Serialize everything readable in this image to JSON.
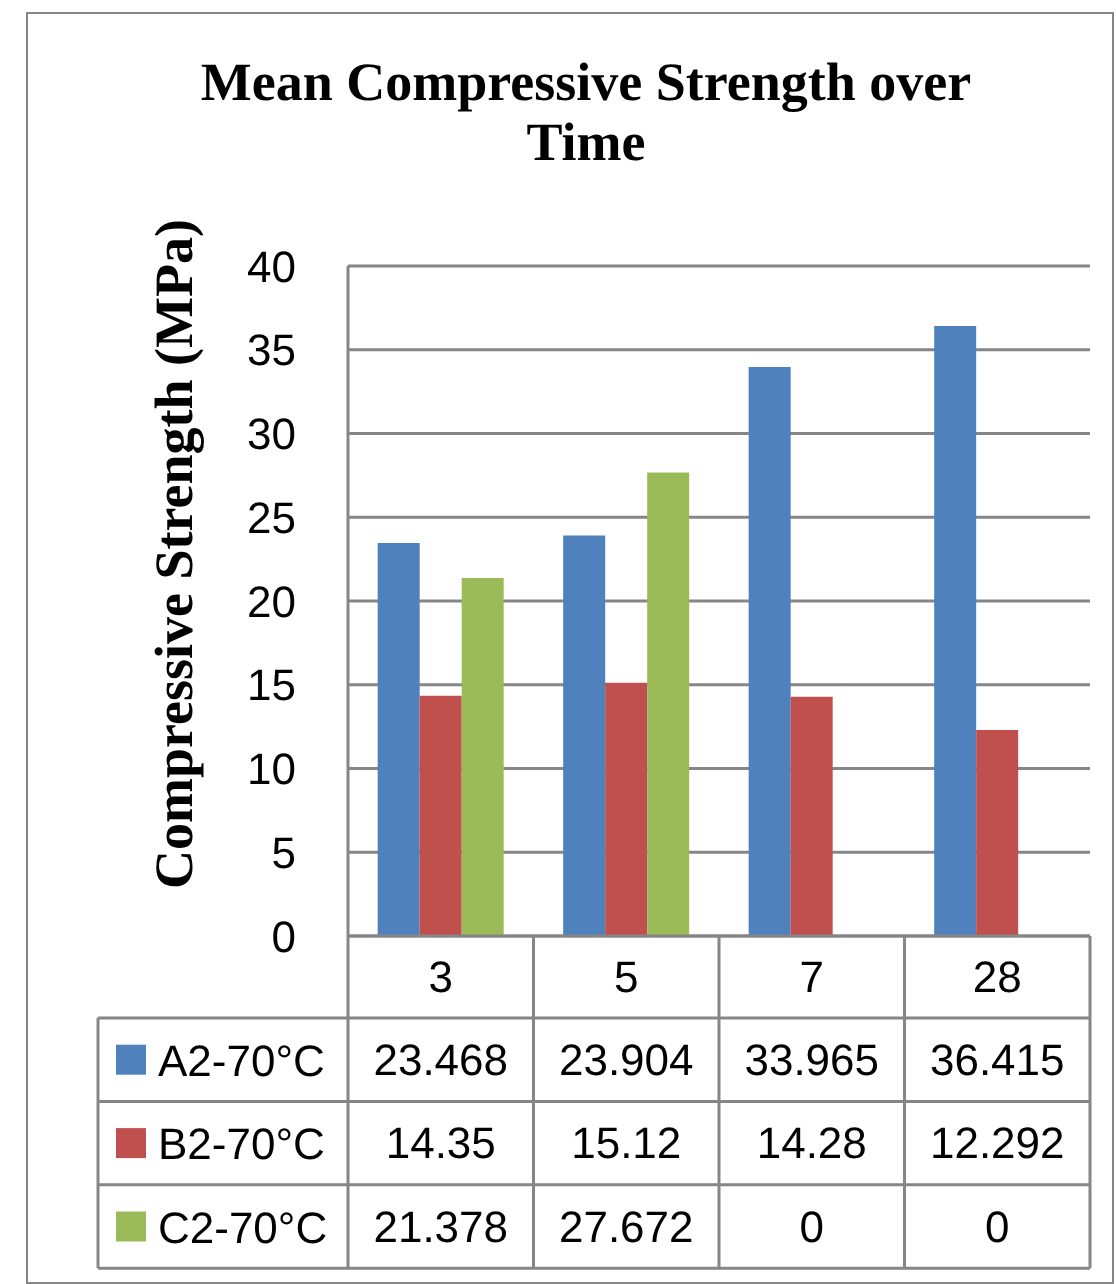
{
  "chart_data": {
    "type": "bar",
    "title": "Mean Compressive Strength over Time",
    "ylabel": "Compressive Strength (MPa)",
    "categories": [
      "3",
      "5",
      "7",
      "28"
    ],
    "series": [
      {
        "name": "A2-70°C",
        "color": "#4f81bd",
        "values": [
          23.468,
          23.904,
          33.965,
          36.415
        ]
      },
      {
        "name": "B2-70°C",
        "color": "#c0504d",
        "values": [
          14.35,
          15.12,
          14.28,
          12.292
        ]
      },
      {
        "name": "C2-70°C",
        "color": "#9bbb59",
        "values": [
          21.378,
          27.672,
          0,
          0
        ]
      }
    ],
    "ylim": [
      0,
      40
    ],
    "yticks": [
      0,
      5,
      10,
      15,
      20,
      25,
      30,
      35,
      40
    ],
    "grid": "y",
    "legend": "bottom",
    "data_labels": true
  }
}
